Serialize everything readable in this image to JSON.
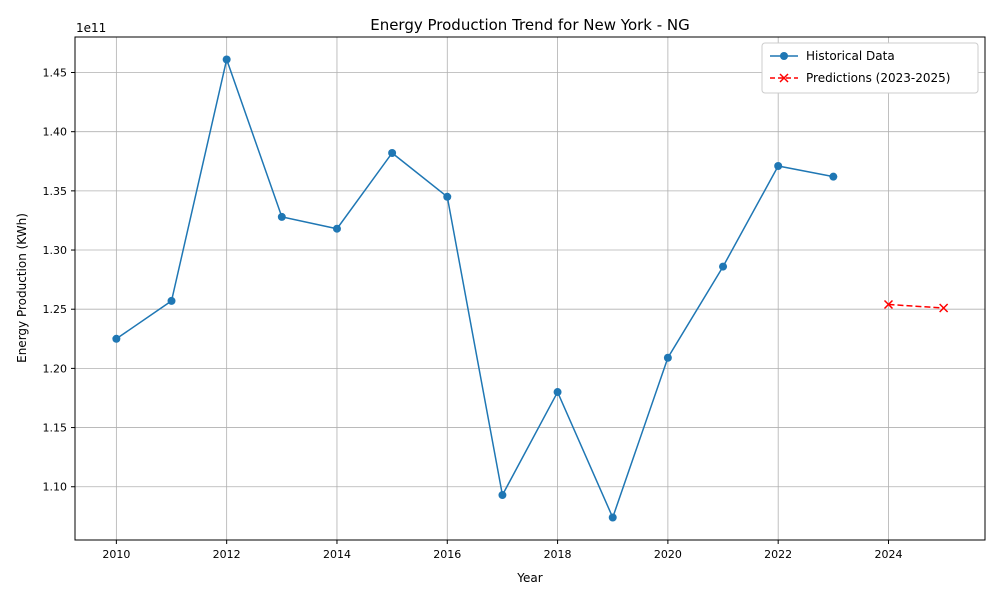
{
  "chart_data": {
    "type": "line",
    "title": "Energy Production Trend for New York - NG",
    "xlabel": "Year",
    "ylabel": "Energy Production (KWh)",
    "y_offset_label": "1e11",
    "xlim": [
      2009.25,
      2025.75
    ],
    "ylim": [
      1.055,
      1.48
    ],
    "x_ticks": [
      2010,
      2012,
      2014,
      2016,
      2018,
      2020,
      2022,
      2024
    ],
    "y_ticks": [
      1.1,
      1.15,
      1.2,
      1.25,
      1.3,
      1.35,
      1.4,
      1.45
    ],
    "y_tick_labels": [
      "1.10",
      "1.15",
      "1.20",
      "1.25",
      "1.30",
      "1.35",
      "1.40",
      "1.45"
    ],
    "grid": true,
    "legend_position": "top-right",
    "series": [
      {
        "name": "Historical Data",
        "color": "#1f77b4",
        "marker": "circle",
        "linestyle": "solid",
        "x": [
          2010,
          2011,
          2012,
          2013,
          2014,
          2015,
          2016,
          2017,
          2018,
          2019,
          2020,
          2021,
          2022,
          2023
        ],
        "values": [
          1.225,
          1.257,
          1.461,
          1.328,
          1.318,
          1.382,
          1.345,
          1.093,
          1.18,
          1.074,
          1.209,
          1.286,
          1.371,
          1.362
        ]
      },
      {
        "name": "Predictions (2023-2025)",
        "color": "#ff0000",
        "marker": "x",
        "linestyle": "dashed",
        "x": [
          2024,
          2025
        ],
        "values": [
          1.254,
          1.251
        ]
      }
    ]
  }
}
